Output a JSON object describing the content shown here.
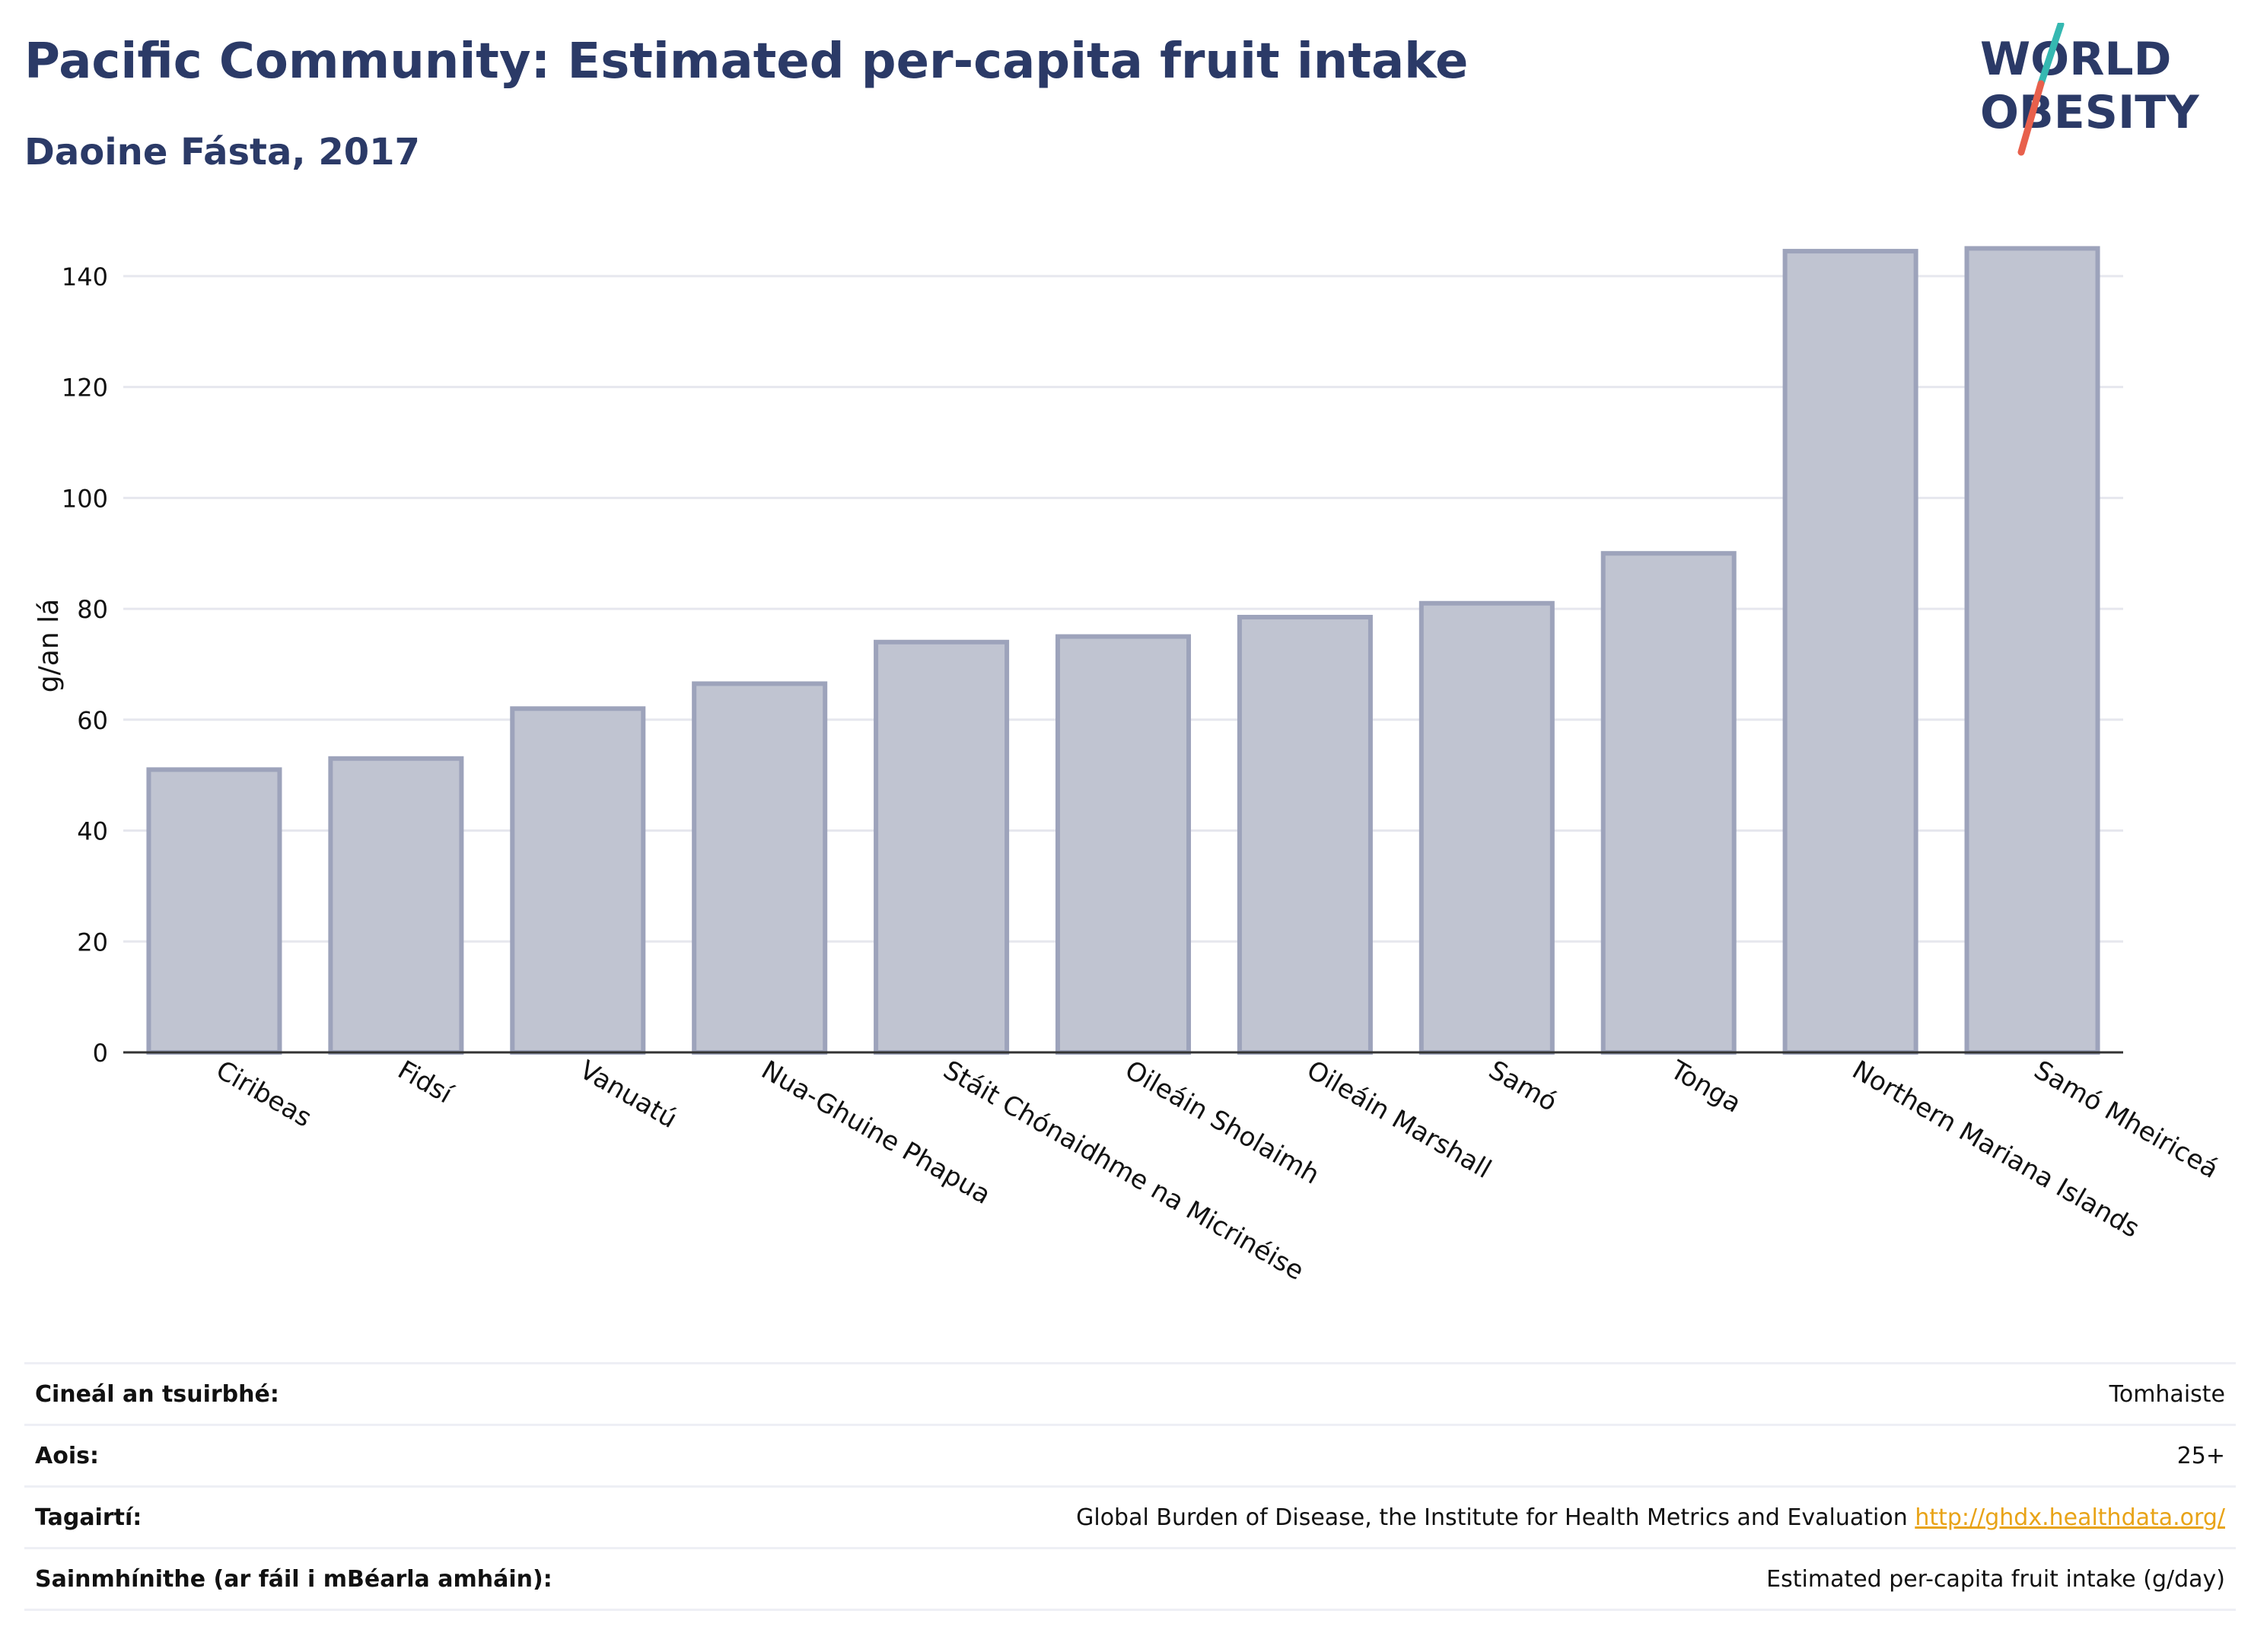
{
  "header": {
    "title": "Pacific Community: Estimated per-capita fruit intake",
    "subtitle": "Daoine Fásta, 2017"
  },
  "logo": {
    "line1": "WORLD",
    "line2": "OBESITY",
    "slash_color_top": "#35b8b1",
    "slash_color_bottom": "#e8604c",
    "text_color": "#2b3a67"
  },
  "colors": {
    "bar_fill": "#c0c4d1",
    "bar_stroke": "#9da3bb",
    "title": "#2b3a67",
    "link": "#e8a317"
  },
  "chart_data": {
    "type": "bar",
    "ylabel": "g/an lá",
    "xlabel": "",
    "ylim": [
      0,
      150
    ],
    "yticks": [
      0,
      20,
      40,
      60,
      80,
      100,
      120,
      140
    ],
    "grid": true,
    "categories": [
      "Ciribeas",
      "Fidsí",
      "Vanuatú",
      "Nua-Ghuine Phapua",
      "Stáit Chónaidhme na Micrinéise",
      "Oileáin Sholaimh",
      "Oileáin Marshall",
      "Samó",
      "Tonga",
      "Northern Mariana Islands",
      "Samó Mheiriceá"
    ],
    "values": [
      51,
      53,
      62,
      66.5,
      74,
      75,
      78.5,
      81,
      90,
      144.5,
      145
    ]
  },
  "info": [
    {
      "label": "Cineál an tsuirbhé:",
      "value": "Tomhaiste"
    },
    {
      "label": "Aois:",
      "value": "25+"
    },
    {
      "label": "Tagairtí:",
      "value": "Global Burden of Disease, the Institute for Health Metrics and Evaluation",
      "link": "http://ghdx.healthdata.org/"
    },
    {
      "label": "Sainmhínithe (ar fáil i mBéarla amháin):",
      "value": "Estimated per-capita fruit intake (g/day)"
    }
  ]
}
